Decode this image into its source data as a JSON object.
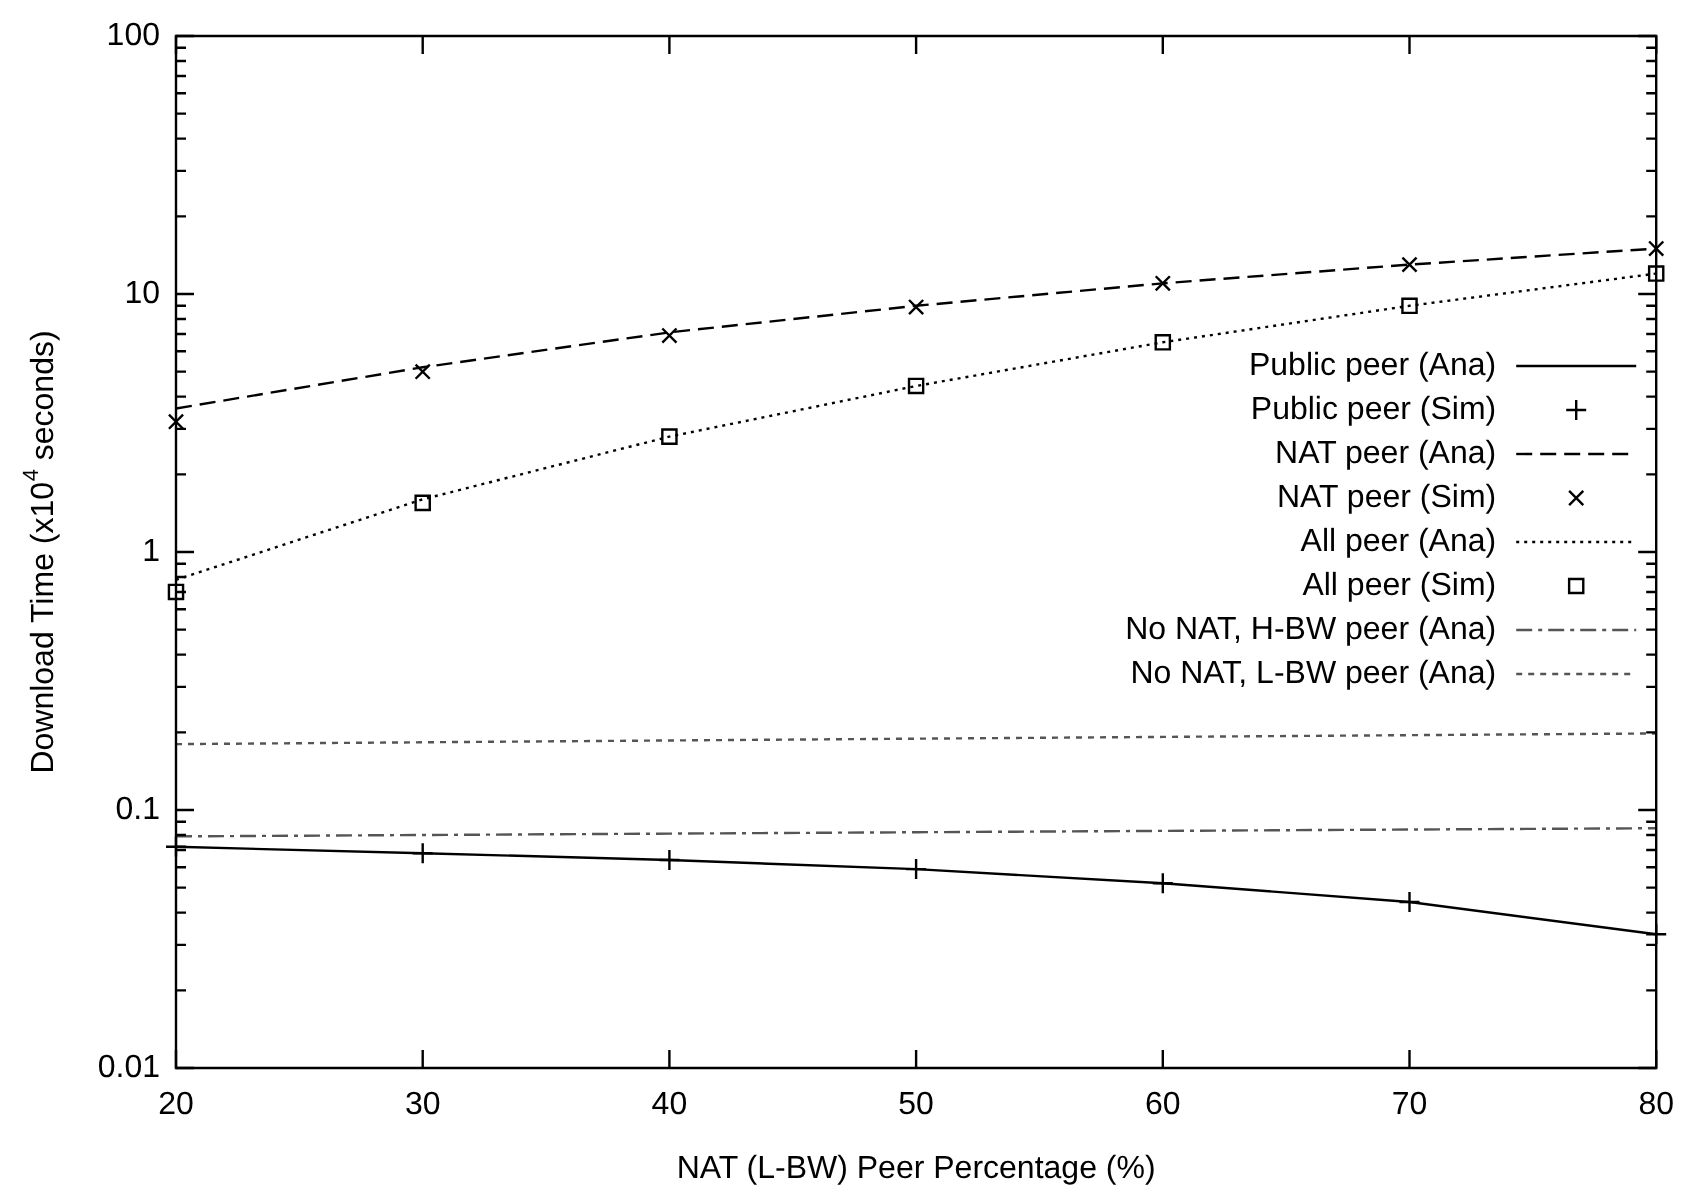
{
  "chart_data": {
    "type": "line",
    "xlabel": "NAT (L-BW) Peer Percentage (%)",
    "ylabel": "Download Time (x10$^{4}$ seconds)",
    "x": [
      20,
      30,
      40,
      50,
      60,
      70,
      80
    ],
    "xlim": [
      20,
      80
    ],
    "xticks": [
      20,
      30,
      40,
      50,
      60,
      70,
      80
    ],
    "ylim": [
      0.01,
      100
    ],
    "yticks": [
      0.01,
      {
        "value": 0.02,
        "label": null
      },
      {
        "value": 0.03,
        "label": null
      },
      {
        "value": 0.04,
        "label": null
      },
      {
        "value": 0.05,
        "label": null
      },
      {
        "value": 0.06,
        "label": null
      },
      {
        "value": 0.07,
        "label": null
      },
      {
        "value": 0.08,
        "label": null
      },
      {
        "value": 0.09,
        "label": null
      },
      0.1,
      {
        "value": 0.2,
        "label": null
      },
      {
        "value": 0.3,
        "label": null
      },
      {
        "value": 0.4,
        "label": null
      },
      {
        "value": 0.5,
        "label": null
      },
      {
        "value": 0.6,
        "label": null
      },
      {
        "value": 0.7,
        "label": null
      },
      {
        "value": 0.8,
        "label": null
      },
      {
        "value": 0.9,
        "label": null
      },
      1,
      {
        "value": 2,
        "label": null
      },
      {
        "value": 3,
        "label": null
      },
      {
        "value": 4,
        "label": null
      },
      {
        "value": 5,
        "label": null
      },
      {
        "value": 6,
        "label": null
      },
      {
        "value": 7,
        "label": null
      },
      {
        "value": 8,
        "label": null
      },
      {
        "value": 9,
        "label": null
      },
      10,
      {
        "value": 20,
        "label": null
      },
      {
        "value": 30,
        "label": null
      },
      {
        "value": 40,
        "label": null
      },
      {
        "value": 50,
        "label": null
      },
      {
        "value": 60,
        "label": null
      },
      {
        "value": 70,
        "label": null
      },
      {
        "value": 80,
        "label": null
      },
      {
        "value": 90,
        "label": null
      },
      100
    ],
    "log": "y",
    "grid": false,
    "legend": "right",
    "series": [
      {
        "name": "Public peer (Ana)",
        "type": "line",
        "color": "#000000",
        "line_style": "solid",
        "marker": "none",
        "values": [
          0.072,
          0.068,
          0.064,
          0.059,
          0.052,
          0.044,
          0.033
        ]
      },
      {
        "name": "Public peer (Sim)",
        "type": "scatter",
        "color": "#000000",
        "marker": "plus",
        "values": [
          0.072,
          0.068,
          0.064,
          0.059,
          0.052,
          0.044,
          0.033
        ]
      },
      {
        "name": "NAT peer (Ana)",
        "type": "line",
        "color": "#000000",
        "line_style": "dashed",
        "marker": "none",
        "values": [
          3.6,
          5.2,
          7.1,
          9.0,
          11,
          13,
          15
        ]
      },
      {
        "name": "NAT peer (Sim)",
        "type": "scatter",
        "color": "#000000",
        "marker": "cross",
        "values": [
          3.2,
          5.0,
          6.9,
          8.9,
          11,
          13,
          15
        ]
      },
      {
        "name": "All peer (Ana)",
        "type": "line",
        "color": "#000000",
        "line_style": "dotted",
        "marker": "none",
        "values": [
          0.78,
          1.6,
          2.8,
          4.4,
          6.5,
          9.0,
          12
        ]
      },
      {
        "name": "All peer (Sim)",
        "type": "scatter",
        "color": "#000000",
        "marker": "square",
        "values": [
          0.7,
          1.55,
          2.8,
          4.4,
          6.5,
          9.0,
          12
        ]
      },
      {
        "name": "No NAT, H-BW peer (Ana)",
        "type": "line",
        "color": "#555555",
        "line_style": "dashdot",
        "marker": "none",
        "values": [
          0.079,
          0.08,
          0.081,
          0.082,
          0.083,
          0.084,
          0.085
        ]
      },
      {
        "name": "No NAT, L-BW peer (Ana)",
        "type": "line",
        "color": "#555555",
        "line_style": "dashed_short",
        "marker": "none",
        "values": [
          0.18,
          0.183,
          0.186,
          0.189,
          0.192,
          0.195,
          0.198
        ]
      }
    ]
  }
}
